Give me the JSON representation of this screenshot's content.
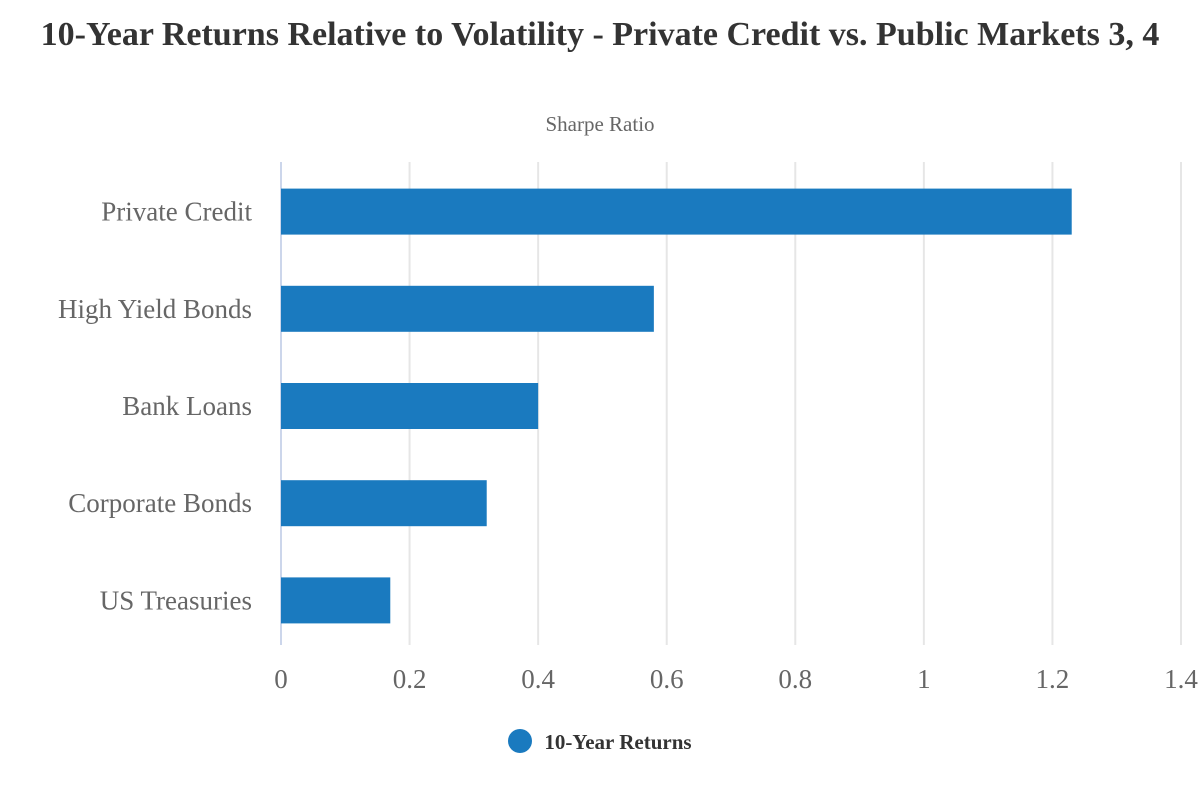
{
  "chart_data": {
    "type": "bar",
    "orientation": "horizontal",
    "title": "10-Year Returns Relative to Volatility - Private Credit vs. Public Markets 3, 4",
    "subtitle": "Sharpe Ratio",
    "categories": [
      "Private Credit",
      "High Yield Bonds",
      "Bank Loans",
      "Corporate Bonds",
      "US Treasuries"
    ],
    "series": [
      {
        "name": "10-Year Returns",
        "values": [
          1.23,
          0.58,
          0.4,
          0.32,
          0.17
        ],
        "color": "#1a7abf"
      }
    ],
    "xlim": [
      0,
      1.4
    ],
    "xticks": [
      "0",
      "0.2",
      "0.4",
      "0.6",
      "0.8",
      "1",
      "1.2",
      "1.4"
    ],
    "grid": true,
    "legend_position": "bottom"
  }
}
